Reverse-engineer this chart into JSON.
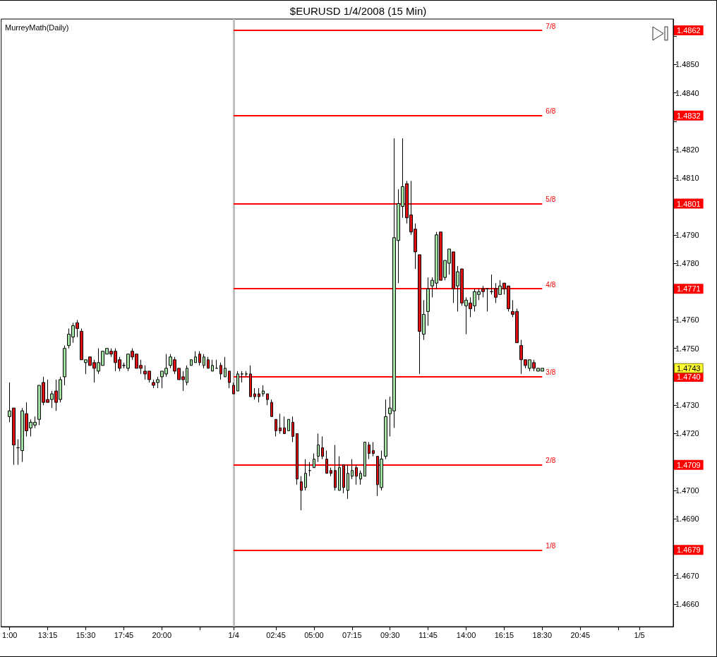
{
  "chart_data": {
    "type": "candlestick",
    "title": "$EURUSD 1/4/2008 (15 Min)",
    "annotations": [
      "MurreyMath(Daily)",
      {
        "text": "1.4862",
        "y": 1.4862
      },
      {
        "text": "1.4832",
        "y": 1.4832
      },
      {
        "text": "1.4801",
        "y": 1.4801
      },
      {
        "text": "1.4771",
        "y": 1.4771
      },
      {
        "text": "1.4743",
        "y": 1.4743
      },
      {
        "text": "1.4740",
        "y": 1.474
      },
      {
        "text": "1.4709",
        "y": 1.4709
      },
      {
        "text": "1.4679",
        "y": 1.4679
      },
      {
        "text": "7/8",
        "x": "2008-01-04T18:30",
        "y": 1.4862
      },
      {
        "text": "6/8",
        "x": "2008-01-04T18:30",
        "y": 1.4832
      },
      {
        "text": "5/8",
        "x": "2008-01-04T18:30",
        "y": 1.4801
      },
      {
        "text": "4/8",
        "x": "2008-01-04T18:30",
        "y": 1.4771
      },
      {
        "text": "3/8",
        "x": "2008-01-04T18:30",
        "y": 1.474
      },
      {
        "text": "2/8",
        "x": "2008-01-04T18:30",
        "y": 1.4709
      },
      {
        "text": "1/8",
        "x": "2008-01-04T18:30",
        "y": 1.4679
      }
    ],
    "x": [
      "2008-01-03T11:00",
      "2008-01-03T11:15",
      "2008-01-03T11:30",
      "2008-01-03T11:45",
      "2008-01-03T12:00",
      "2008-01-03T12:15",
      "2008-01-03T12:30",
      "2008-01-03T12:45",
      "2008-01-03T13:00",
      "2008-01-03T13:15",
      "2008-01-03T13:30",
      "2008-01-03T13:45",
      "2008-01-03T14:00",
      "2008-01-03T14:15",
      "2008-01-03T14:30",
      "2008-01-03T14:45",
      "2008-01-03T15:00",
      "2008-01-03T15:15",
      "2008-01-03T15:30",
      "2008-01-03T15:45",
      "2008-01-03T16:00",
      "2008-01-03T16:15",
      "2008-01-03T16:30",
      "2008-01-03T16:45",
      "2008-01-03T17:00",
      "2008-01-03T17:15",
      "2008-01-03T17:30",
      "2008-01-03T17:45",
      "2008-01-03T18:00",
      "2008-01-03T18:15",
      "2008-01-03T18:30",
      "2008-01-03T18:45",
      "2008-01-03T19:00",
      "2008-01-03T19:15",
      "2008-01-03T19:30",
      "2008-01-03T19:45",
      "2008-01-03T20:00",
      "2008-01-03T20:15",
      "2008-01-03T20:30",
      "2008-01-03T20:45",
      "2008-01-03T21:00",
      "2008-01-03T21:15",
      "2008-01-03T21:30",
      "2008-01-03T21:45",
      "2008-01-03T22:00",
      "2008-01-03T22:15",
      "2008-01-03T22:30",
      "2008-01-03T22:45",
      "2008-01-03T23:00",
      "2008-01-03T23:15",
      "2008-01-03T23:30",
      "2008-01-03T23:45",
      "2008-01-04T00:00",
      "2008-01-04T00:15",
      "2008-01-04T00:30",
      "2008-01-04T00:45",
      "2008-01-04T01:00",
      "2008-01-04T01:15",
      "2008-01-04T01:30",
      "2008-01-04T01:45",
      "2008-01-04T02:00",
      "2008-01-04T02:15",
      "2008-01-04T02:30",
      "2008-01-04T02:45",
      "2008-01-04T03:00",
      "2008-01-04T03:15",
      "2008-01-04T03:30",
      "2008-01-04T03:45",
      "2008-01-04T04:00",
      "2008-01-04T04:15",
      "2008-01-04T04:30",
      "2008-01-04T04:45",
      "2008-01-04T05:00",
      "2008-01-04T05:15",
      "2008-01-04T05:30",
      "2008-01-04T05:45",
      "2008-01-04T06:00",
      "2008-01-04T06:15",
      "2008-01-04T06:30",
      "2008-01-04T06:45",
      "2008-01-04T07:00",
      "2008-01-04T07:15",
      "2008-01-04T07:30",
      "2008-01-04T07:45",
      "2008-01-04T08:00",
      "2008-01-04T08:15",
      "2008-01-04T08:30",
      "2008-01-04T08:45",
      "2008-01-04T09:00",
      "2008-01-04T09:15",
      "2008-01-04T09:30",
      "2008-01-04T09:45",
      "2008-01-04T10:00",
      "2008-01-04T10:15",
      "2008-01-04T10:30",
      "2008-01-04T10:45",
      "2008-01-04T11:00",
      "2008-01-04T11:15",
      "2008-01-04T11:30",
      "2008-01-04T11:45",
      "2008-01-04T12:00",
      "2008-01-04T12:15",
      "2008-01-04T12:30",
      "2008-01-04T12:45",
      "2008-01-04T13:00",
      "2008-01-04T13:15",
      "2008-01-04T13:30",
      "2008-01-04T13:45",
      "2008-01-04T14:00",
      "2008-01-04T14:15",
      "2008-01-04T14:30",
      "2008-01-04T14:45",
      "2008-01-04T15:00",
      "2008-01-04T15:15",
      "2008-01-04T15:30",
      "2008-01-04T15:45",
      "2008-01-04T16:00",
      "2008-01-04T16:15",
      "2008-01-04T16:30",
      "2008-01-04T16:45",
      "2008-01-04T17:00",
      "2008-01-04T17:15",
      "2008-01-04T17:30",
      "2008-01-04T17:45",
      "2008-01-04T18:00",
      "2008-01-04T18:15",
      "2008-01-04T18:30"
    ],
    "ohlc": [
      [
        1.4726,
        1.4738,
        1.4724,
        1.4728
      ],
      [
        1.4729,
        1.4729,
        1.4709,
        1.4716
      ],
      [
        1.4715,
        1.4718,
        1.4709,
        1.4715
      ],
      [
        1.4714,
        1.4729,
        1.471,
        1.4728
      ],
      [
        1.4727,
        1.4731,
        1.4719,
        1.4721
      ],
      [
        1.4722,
        1.4725,
        1.4719,
        1.4724
      ],
      [
        1.4723,
        1.4726,
        1.4722,
        1.4724
      ],
      [
        1.4725,
        1.4737,
        1.4723,
        1.4737
      ],
      [
        1.4738,
        1.474,
        1.473,
        1.4731
      ],
      [
        1.4732,
        1.4739,
        1.4731,
        1.4731
      ],
      [
        1.4732,
        1.4735,
        1.4729,
        1.4734
      ],
      [
        1.4735,
        1.4739,
        1.4728,
        1.4731
      ],
      [
        1.4732,
        1.474,
        1.4731,
        1.4739
      ],
      [
        1.474,
        1.4751,
        1.4737,
        1.475
      ],
      [
        1.4751,
        1.4757,
        1.475,
        1.4755
      ],
      [
        1.4754,
        1.4759,
        1.4752,
        1.4758
      ],
      [
        1.4759,
        1.476,
        1.4754,
        1.4757
      ],
      [
        1.4756,
        1.4757,
        1.4746,
        1.4746
      ],
      [
        1.4745,
        1.4746,
        1.4741,
        1.4746
      ],
      [
        1.4747,
        1.4747,
        1.4744,
        1.4744
      ],
      [
        1.4745,
        1.4746,
        1.4738,
        1.4743
      ],
      [
        1.4742,
        1.475,
        1.4741,
        1.4745
      ],
      [
        1.4744,
        1.4749,
        1.4744,
        1.4749
      ],
      [
        1.4748,
        1.475,
        1.4748,
        1.475
      ],
      [
        1.4749,
        1.475,
        1.4747,
        1.4748
      ],
      [
        1.4749,
        1.475,
        1.4742,
        1.4745
      ],
      [
        1.4746,
        1.4747,
        1.4742,
        1.4743
      ],
      [
        1.4744,
        1.4745,
        1.4743,
        1.4744
      ],
      [
        1.4743,
        1.4748,
        1.4742,
        1.4748
      ],
      [
        1.4749,
        1.475,
        1.4746,
        1.4747
      ],
      [
        1.4748,
        1.4748,
        1.4743,
        1.4743
      ],
      [
        1.4744,
        1.4746,
        1.4741,
        1.4743
      ],
      [
        1.4742,
        1.4744,
        1.4739,
        1.4741
      ],
      [
        1.4742,
        1.4742,
        1.4738,
        1.4739
      ],
      [
        1.4738,
        1.4739,
        1.4736,
        1.4737
      ],
      [
        1.4738,
        1.474,
        1.4736,
        1.4739
      ],
      [
        1.474,
        1.4742,
        1.4736,
        1.4742
      ],
      [
        1.4741,
        1.4748,
        1.474,
        1.4743
      ],
      [
        1.4744,
        1.4748,
        1.4743,
        1.4747
      ],
      [
        1.4746,
        1.4747,
        1.4741,
        1.4742
      ],
      [
        1.4743,
        1.4743,
        1.4739,
        1.4739
      ],
      [
        1.474,
        1.4742,
        1.4735,
        1.4739
      ],
      [
        1.4738,
        1.4744,
        1.4737,
        1.4743
      ],
      [
        1.4744,
        1.4746,
        1.4744,
        1.4746
      ],
      [
        1.4745,
        1.4749,
        1.4745,
        1.4747
      ],
      [
        1.4748,
        1.4749,
        1.4744,
        1.4745
      ],
      [
        1.4744,
        1.4748,
        1.4743,
        1.4747
      ],
      [
        1.4746,
        1.4747,
        1.4743,
        1.4743
      ],
      [
        1.4742,
        1.4746,
        1.4742,
        1.4744
      ],
      [
        1.4743,
        1.4746,
        1.4743,
        1.4743
      ],
      [
        1.4744,
        1.4745,
        1.4739,
        1.4741
      ],
      [
        1.474,
        1.4747,
        1.474,
        1.4743
      ],
      [
        1.4742,
        1.4742,
        1.4736,
        1.4738
      ],
      [
        1.4737,
        1.4738,
        1.4734,
        1.4734
      ],
      [
        1.4735,
        1.4742,
        1.4735,
        1.4741
      ],
      [
        1.4741,
        1.4742,
        1.4738,
        1.4741
      ],
      [
        1.4741,
        1.4742,
        1.474,
        1.4741
      ],
      [
        1.4741,
        1.4744,
        1.4733,
        1.4733
      ],
      [
        1.4734,
        1.4736,
        1.4732,
        1.4733
      ],
      [
        1.4734,
        1.4736,
        1.4731,
        1.4733
      ],
      [
        1.4734,
        1.4737,
        1.4733,
        1.4735
      ],
      [
        1.4734,
        1.4734,
        1.473,
        1.4732
      ],
      [
        1.4731,
        1.4732,
        1.4726,
        1.4726
      ],
      [
        1.4725,
        1.4725,
        1.4719,
        1.4721
      ],
      [
        1.4722,
        1.4727,
        1.472,
        1.4721
      ],
      [
        1.4722,
        1.4726,
        1.472,
        1.472
      ],
      [
        1.4721,
        1.4725,
        1.4721,
        1.4725
      ],
      [
        1.4724,
        1.4726,
        1.4717,
        1.4719
      ],
      [
        1.472,
        1.472,
        1.4702,
        1.4704
      ],
      [
        1.4703,
        1.4705,
        1.4693,
        1.47
      ],
      [
        1.4701,
        1.4711,
        1.47,
        1.4706
      ],
      [
        1.4707,
        1.471,
        1.4705,
        1.4707
      ],
      [
        1.4708,
        1.4713,
        1.4708,
        1.4711
      ],
      [
        1.4712,
        1.472,
        1.471,
        1.4716
      ],
      [
        1.4715,
        1.4719,
        1.4711,
        1.4712
      ],
      [
        1.4711,
        1.4714,
        1.4706,
        1.4706
      ],
      [
        1.4707,
        1.4708,
        1.4705,
        1.4706
      ],
      [
        1.4707,
        1.4716,
        1.47,
        1.4701
      ],
      [
        1.47,
        1.4712,
        1.47,
        1.4708
      ],
      [
        1.4709,
        1.4709,
        1.4699,
        1.4701
      ],
      [
        1.47,
        1.4709,
        1.4697,
        1.4706
      ],
      [
        1.4705,
        1.4711,
        1.4704,
        1.4707
      ],
      [
        1.4708,
        1.4709,
        1.4702,
        1.4705
      ],
      [
        1.4704,
        1.4707,
        1.4702,
        1.4706
      ],
      [
        1.4705,
        1.4717,
        1.4705,
        1.4717
      ],
      [
        1.4716,
        1.4717,
        1.4711,
        1.4713
      ],
      [
        1.4714,
        1.4717,
        1.4712,
        1.4713
      ],
      [
        1.4712,
        1.4712,
        1.4698,
        1.4702
      ],
      [
        1.4701,
        1.4714,
        1.47,
        1.4711
      ],
      [
        1.4712,
        1.4732,
        1.4711,
        1.4726
      ],
      [
        1.4727,
        1.4733,
        1.4719,
        1.4729
      ],
      [
        1.4728,
        1.4824,
        1.4722,
        1.4789
      ],
      [
        1.4788,
        1.4806,
        1.4773,
        1.4801
      ],
      [
        1.48,
        1.4824,
        1.4796,
        1.4807
      ],
      [
        1.4808,
        1.4809,
        1.4794,
        1.4796
      ],
      [
        1.4797,
        1.4809,
        1.479,
        1.4791
      ],
      [
        1.4792,
        1.4794,
        1.4778,
        1.4784
      ],
      [
        1.4783,
        1.4783,
        1.4741,
        1.4756
      ],
      [
        1.4755,
        1.4767,
        1.4753,
        1.4762
      ],
      [
        1.4763,
        1.4775,
        1.4758,
        1.4771
      ],
      [
        1.4772,
        1.4775,
        1.4768,
        1.4774
      ],
      [
        1.4773,
        1.4791,
        1.4771,
        1.479
      ],
      [
        1.4791,
        1.4791,
        1.4774,
        1.4774
      ],
      [
        1.4775,
        1.4781,
        1.4774,
        1.4781
      ],
      [
        1.478,
        1.4785,
        1.4776,
        1.4785
      ],
      [
        1.4784,
        1.4784,
        1.4766,
        1.4771
      ],
      [
        1.4772,
        1.4779,
        1.4763,
        1.4777
      ],
      [
        1.4778,
        1.4778,
        1.4765,
        1.4766
      ],
      [
        1.4765,
        1.4768,
        1.4755,
        1.4767
      ],
      [
        1.4766,
        1.4768,
        1.4761,
        1.4764
      ],
      [
        1.4765,
        1.4771,
        1.4763,
        1.477
      ],
      [
        1.4769,
        1.4771,
        1.4767,
        1.477
      ],
      [
        1.4771,
        1.4772,
        1.4768,
        1.477
      ],
      [
        1.4771,
        1.4771,
        1.4763,
        1.4771
      ],
      [
        1.477,
        1.4776,
        1.4769,
        1.477
      ],
      [
        1.4771,
        1.4773,
        1.4766,
        1.4768
      ],
      [
        1.4769,
        1.4774,
        1.4769,
        1.4772
      ],
      [
        1.4773,
        1.4773,
        1.4769,
        1.4771
      ],
      [
        1.4772,
        1.4772,
        1.4763,
        1.4764
      ],
      [
        1.4763,
        1.4767,
        1.4761,
        1.4762
      ],
      [
        1.4763,
        1.4764,
        1.4752,
        1.4752
      ],
      [
        1.4751,
        1.4753,
        1.4741,
        1.4746
      ],
      [
        1.4746,
        1.4746,
        1.4743,
        1.4744
      ],
      [
        1.4743,
        1.4746,
        1.4742,
        1.4746
      ],
      [
        1.4745,
        1.4746,
        1.4742,
        1.4743
      ],
      [
        1.4742,
        1.4743,
        1.4742,
        1.4743
      ],
      [
        1.4742,
        1.4743,
        1.4742,
        1.4743
      ]
    ],
    "colors": [
      "#a0e0a0",
      "#e01010",
      "#000000",
      "#a0e0a0",
      "#e01010",
      "#a0e0a0",
      "#a0e0a0",
      "#a0e0a0",
      "#e01010",
      "#e01010",
      "#a0e0a0",
      "#e01010",
      "#a0e0a0",
      "#a0e0a0",
      "#a0e0a0",
      "#a0e0a0",
      "#e01010",
      "#e01010",
      "#a0e0a0",
      "#e01010",
      "#e01010",
      "#a0e0a0",
      "#a0e0a0",
      "#a0e0a0",
      "#e01010",
      "#e01010",
      "#e01010",
      "#000000",
      "#a0e0a0",
      "#e01010",
      "#e01010",
      "#e01010",
      "#e01010",
      "#e01010",
      "#e01010",
      "#a0e0a0",
      "#a0e0a0",
      "#a0e0a0",
      "#a0e0a0",
      "#e01010",
      "#e01010",
      "#e01010",
      "#a0e0a0",
      "#a0e0a0",
      "#a0e0a0",
      "#e01010",
      "#a0e0a0",
      "#e01010",
      "#a0e0a0",
      "#000000",
      "#e01010",
      "#a0e0a0",
      "#e01010",
      "#e01010",
      "#a0e0a0",
      "#000000",
      "#000000",
      "#e01010",
      "#e01010",
      "#e01010",
      "#a0e0a0",
      "#e01010",
      "#e01010",
      "#e01010",
      "#e01010",
      "#e01010",
      "#a0e0a0",
      "#e01010",
      "#e01010",
      "#e01010",
      "#a0e0a0",
      "#000000",
      "#a0e0a0",
      "#a0e0a0",
      "#e01010",
      "#e01010",
      "#e01010",
      "#e01010",
      "#a0e0a0",
      "#e01010",
      "#a0e0a0",
      "#a0e0a0",
      "#e01010",
      "#a0e0a0",
      "#a0e0a0",
      "#e01010",
      "#e01010",
      "#e01010",
      "#a0e0a0",
      "#a0e0a0",
      "#a0e0a0",
      "#a0e0a0",
      "#a0e0a0",
      "#a0e0a0",
      "#e01010",
      "#e01010",
      "#e01010",
      "#e01010",
      "#a0e0a0",
      "#a0e0a0",
      "#a0e0a0",
      "#a0e0a0",
      "#e01010",
      "#a0e0a0",
      "#a0e0a0",
      "#e01010",
      "#a0e0a0",
      "#e01010",
      "#a0e0a0",
      "#e01010",
      "#a0e0a0",
      "#a0e0a0",
      "#e01010",
      "#000000",
      "#000000",
      "#e01010",
      "#a0e0a0",
      "#e01010",
      "#e01010",
      "#e01010",
      "#e01010",
      "#e01010",
      "#e01010",
      "#a0e0a0",
      "#e01010",
      "#a0e0a0",
      "#a0e0a0"
    ],
    "xlim": [
      "2008-01-03T10:30",
      "2008-01-05T02:15"
    ],
    "xticks": [
      {
        "value": "2008-01-03T11:00",
        "label": "1:00"
      },
      {
        "value": "2008-01-03T13:15",
        "label": "13:15"
      },
      {
        "value": "2008-01-03T15:30",
        "label": "15:30"
      },
      {
        "value": "2008-01-03T17:45",
        "label": "17:45"
      },
      {
        "value": "2008-01-03T20:00",
        "label": "20:00"
      },
      {
        "value": "2008-01-03T22:15",
        "label": null
      },
      {
        "value": "2008-01-04T00:15",
        "label": "1/4"
      },
      {
        "value": "2008-01-04T02:45",
        "label": "02:45"
      },
      {
        "value": "2008-01-04T05:00",
        "label": "05:00"
      },
      {
        "value": "2008-01-04T07:15",
        "label": "07:15"
      },
      {
        "value": "2008-01-04T09:30",
        "label": "09:30"
      },
      {
        "value": "2008-01-04T11:45",
        "label": "11:45"
      },
      {
        "value": "2008-01-04T14:00",
        "label": "14:00"
      },
      {
        "value": "2008-01-04T16:15",
        "label": "16:15"
      },
      {
        "value": "2008-01-04T18:30",
        "label": "18:30"
      },
      {
        "value": "2008-01-04T20:45",
        "label": "20:45"
      },
      {
        "value": "2008-01-04T23:00",
        "label": null
      },
      {
        "value": "2008-01-05T00:15",
        "label": "1/5"
      }
    ],
    "ylim": [
      1.4652,
      1.4866
    ],
    "yticks": [
      {
        "value": 1.466,
        "label": "1.4660"
      },
      {
        "value": 1.467,
        "label": "1.4670"
      },
      {
        "value": 1.468,
        "label": null
      },
      {
        "value": 1.469,
        "label": "1.4690"
      },
      {
        "value": 1.47,
        "label": "1.4700"
      },
      {
        "value": 1.471,
        "label": null
      },
      {
        "value": 1.472,
        "label": "1.4720"
      },
      {
        "value": 1.473,
        "label": "1.4730"
      },
      {
        "value": 1.474,
        "label": null
      },
      {
        "value": 1.475,
        "label": "1.4750"
      },
      {
        "value": 1.476,
        "label": "1.4760"
      },
      {
        "value": 1.477,
        "label": null
      },
      {
        "value": 1.478,
        "label": "1.4780"
      },
      {
        "value": 1.479,
        "label": "1.4790"
      },
      {
        "value": 1.48,
        "label": null
      },
      {
        "value": 1.481,
        "label": "1.4810"
      },
      {
        "value": 1.482,
        "label": "1.4820"
      },
      {
        "value": 1.483,
        "label": null
      },
      {
        "value": 1.484,
        "label": "1.4840"
      },
      {
        "value": 1.485,
        "label": "1.4850"
      },
      {
        "value": 1.486,
        "label": null
      }
    ],
    "ref_lines": [
      {
        "axis": "x",
        "value": "2008-01-04T00:15",
        "color": "#c0c0c0"
      },
      {
        "axis": "y",
        "value": 1.4862,
        "color": "#ff0000"
      },
      {
        "axis": "y",
        "value": 1.4832,
        "color": "#ff0000"
      },
      {
        "axis": "y",
        "value": 1.4801,
        "color": "#ff0000"
      },
      {
        "axis": "y",
        "value": 1.4771,
        "color": "#ff0000"
      },
      {
        "axis": "y",
        "value": 1.474,
        "color": "#ff0000"
      },
      {
        "axis": "y",
        "value": 1.4709,
        "color": "#ff0000"
      },
      {
        "axis": "y",
        "value": 1.4679,
        "color": "#ff0000"
      }
    ],
    "grid": false
  }
}
